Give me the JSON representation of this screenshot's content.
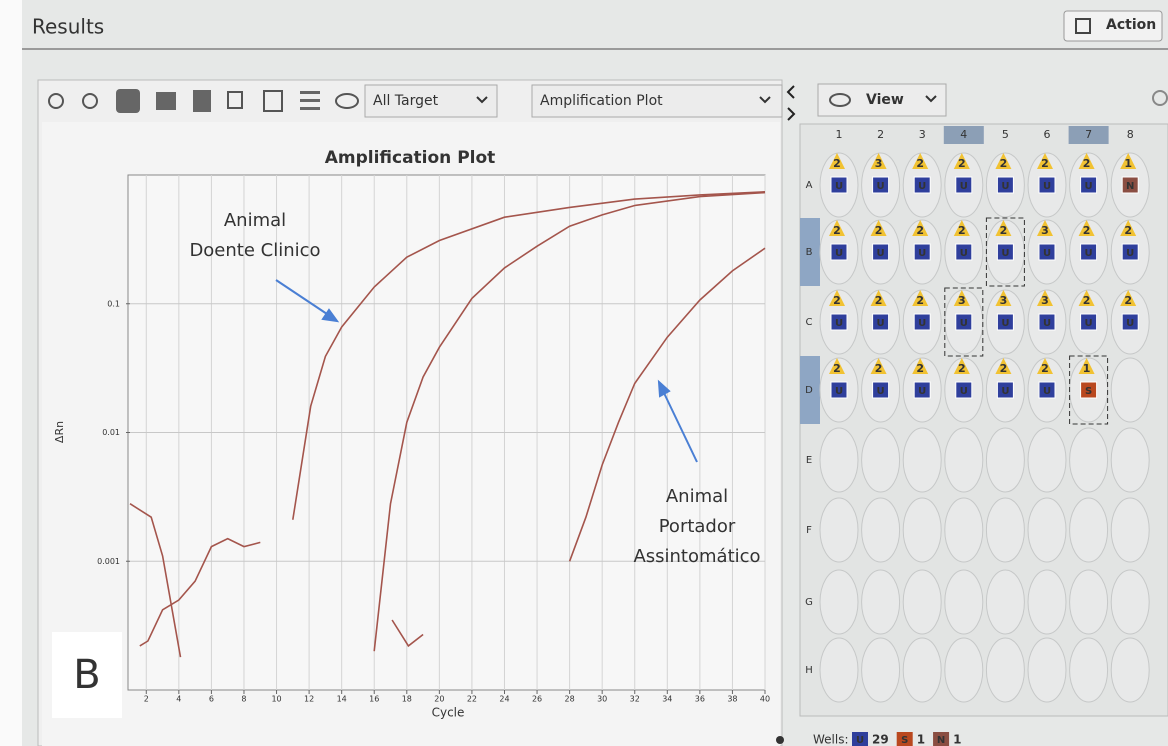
{
  "header": {
    "title": "Results",
    "action": "Action"
  },
  "toolbar": {
    "target": "All Target",
    "plot_type": "Amplification Plot",
    "view": "View"
  },
  "panel_label": "B",
  "chart_data": {
    "type": "line",
    "title": "Amplification Plot",
    "x_label": "Cycle",
    "y_label": "ΔRn",
    "xlim": [
      1,
      40
    ],
    "ylim": [
      0.0001,
      1
    ],
    "y_scale": "log",
    "grid": true,
    "xticks": [
      2,
      4,
      6,
      8,
      10,
      12,
      14,
      16,
      18,
      20,
      22,
      24,
      26,
      28,
      30,
      32,
      34,
      36,
      38,
      40
    ],
    "yticks": [
      0.001,
      0.01,
      0.1
    ],
    "series": [
      {
        "color": "#a4554c",
        "x": [
          11,
          12.1,
          13,
          14,
          16,
          18,
          20,
          24,
          28,
          32,
          36,
          40
        ],
        "values": [
          0.0021,
          0.016,
          0.039,
          0.066,
          0.135,
          0.23,
          0.31,
          0.47,
          0.56,
          0.65,
          0.7,
          0.74
        ]
      },
      {
        "color": "#a4554c",
        "x": [
          16,
          17,
          18,
          19,
          20,
          22,
          24,
          26,
          28,
          30,
          32,
          36,
          40
        ],
        "values": [
          0.0002,
          0.0028,
          0.012,
          0.027,
          0.046,
          0.11,
          0.19,
          0.28,
          0.4,
          0.49,
          0.58,
          0.68,
          0.73
        ]
      },
      {
        "color": "#a4554c",
        "x": [
          28,
          29,
          30,
          31,
          32,
          34,
          36,
          38,
          40
        ],
        "values": [
          0.001,
          0.0022,
          0.0056,
          0.012,
          0.024,
          0.055,
          0.107,
          0.18,
          0.27
        ]
      },
      {
        "color": "#a4554c",
        "x": [
          1,
          2.3,
          3,
          4.1
        ],
        "values": [
          0.0028,
          0.0022,
          0.0011,
          0.00018
        ]
      },
      {
        "color": "#a4554c",
        "x": [
          1.6,
          2.1,
          3,
          4,
          5,
          6,
          7,
          8,
          9
        ],
        "values": [
          0.00022,
          0.00024,
          0.00042,
          0.0005,
          0.0007,
          0.0013,
          0.0015,
          0.0013,
          0.0014
        ]
      },
      {
        "color": "#a4554c",
        "x": [
          17.1,
          18.1,
          19
        ],
        "values": [
          0.00035,
          0.00022,
          0.00027
        ]
      }
    ],
    "annotations": [
      {
        "text_lines": [
          "Animal",
          "Doente Clinico"
        ]
      },
      {
        "text_lines": [
          "Animal",
          "Portador",
          "Assintomático"
        ]
      }
    ]
  },
  "plate": {
    "columns": [
      "1",
      "2",
      "3",
      "4",
      "5",
      "6",
      "7",
      "8"
    ],
    "rows": [
      {
        "label": "A",
        "wells": [
          {
            "count": 2,
            "task": "U"
          },
          {
            "count": 3,
            "task": "U"
          },
          {
            "count": 2,
            "task": "U"
          },
          {
            "count": 2,
            "task": "U"
          },
          {
            "count": 2,
            "task": "U"
          },
          {
            "count": 2,
            "task": "U"
          },
          {
            "count": 2,
            "task": "U"
          },
          {
            "count": 1,
            "task": "N"
          }
        ]
      },
      {
        "label": "B",
        "wells": [
          {
            "count": 2,
            "task": "U"
          },
          {
            "count": 2,
            "task": "U"
          },
          {
            "count": 2,
            "task": "U"
          },
          {
            "count": 2,
            "task": "U"
          },
          {
            "count": 2,
            "task": "U",
            "selected": true
          },
          {
            "count": 3,
            "task": "U"
          },
          {
            "count": 2,
            "task": "U"
          },
          {
            "count": 2,
            "task": "U"
          }
        ]
      },
      {
        "label": "C",
        "wells": [
          {
            "count": 2,
            "task": "U"
          },
          {
            "count": 2,
            "task": "U"
          },
          {
            "count": 2,
            "task": "U"
          },
          {
            "count": 3,
            "task": "U",
            "selected": true
          },
          {
            "count": 3,
            "task": "U"
          },
          {
            "count": 3,
            "task": "U"
          },
          {
            "count": 2,
            "task": "U"
          },
          {
            "count": 2,
            "task": "U"
          }
        ]
      },
      {
        "label": "D",
        "wells": [
          {
            "count": 2,
            "task": "U"
          },
          {
            "count": 2,
            "task": "U"
          },
          {
            "count": 2,
            "task": "U"
          },
          {
            "count": 2,
            "task": "U"
          },
          {
            "count": 2,
            "task": "U"
          },
          {
            "count": 2,
            "task": "U"
          },
          {
            "count": 1,
            "task": "S",
            "selected": true
          },
          null
        ]
      },
      {
        "label": "E",
        "wells": []
      },
      {
        "label": "F",
        "wells": []
      },
      {
        "label": "G",
        "wells": []
      },
      {
        "label": "H",
        "wells": []
      }
    ]
  },
  "footer": {
    "label": "Wells:",
    "counts": [
      {
        "code": "U",
        "count": 29
      },
      {
        "code": "S",
        "count": 1
      },
      {
        "code": "N",
        "count": 1
      }
    ]
  }
}
